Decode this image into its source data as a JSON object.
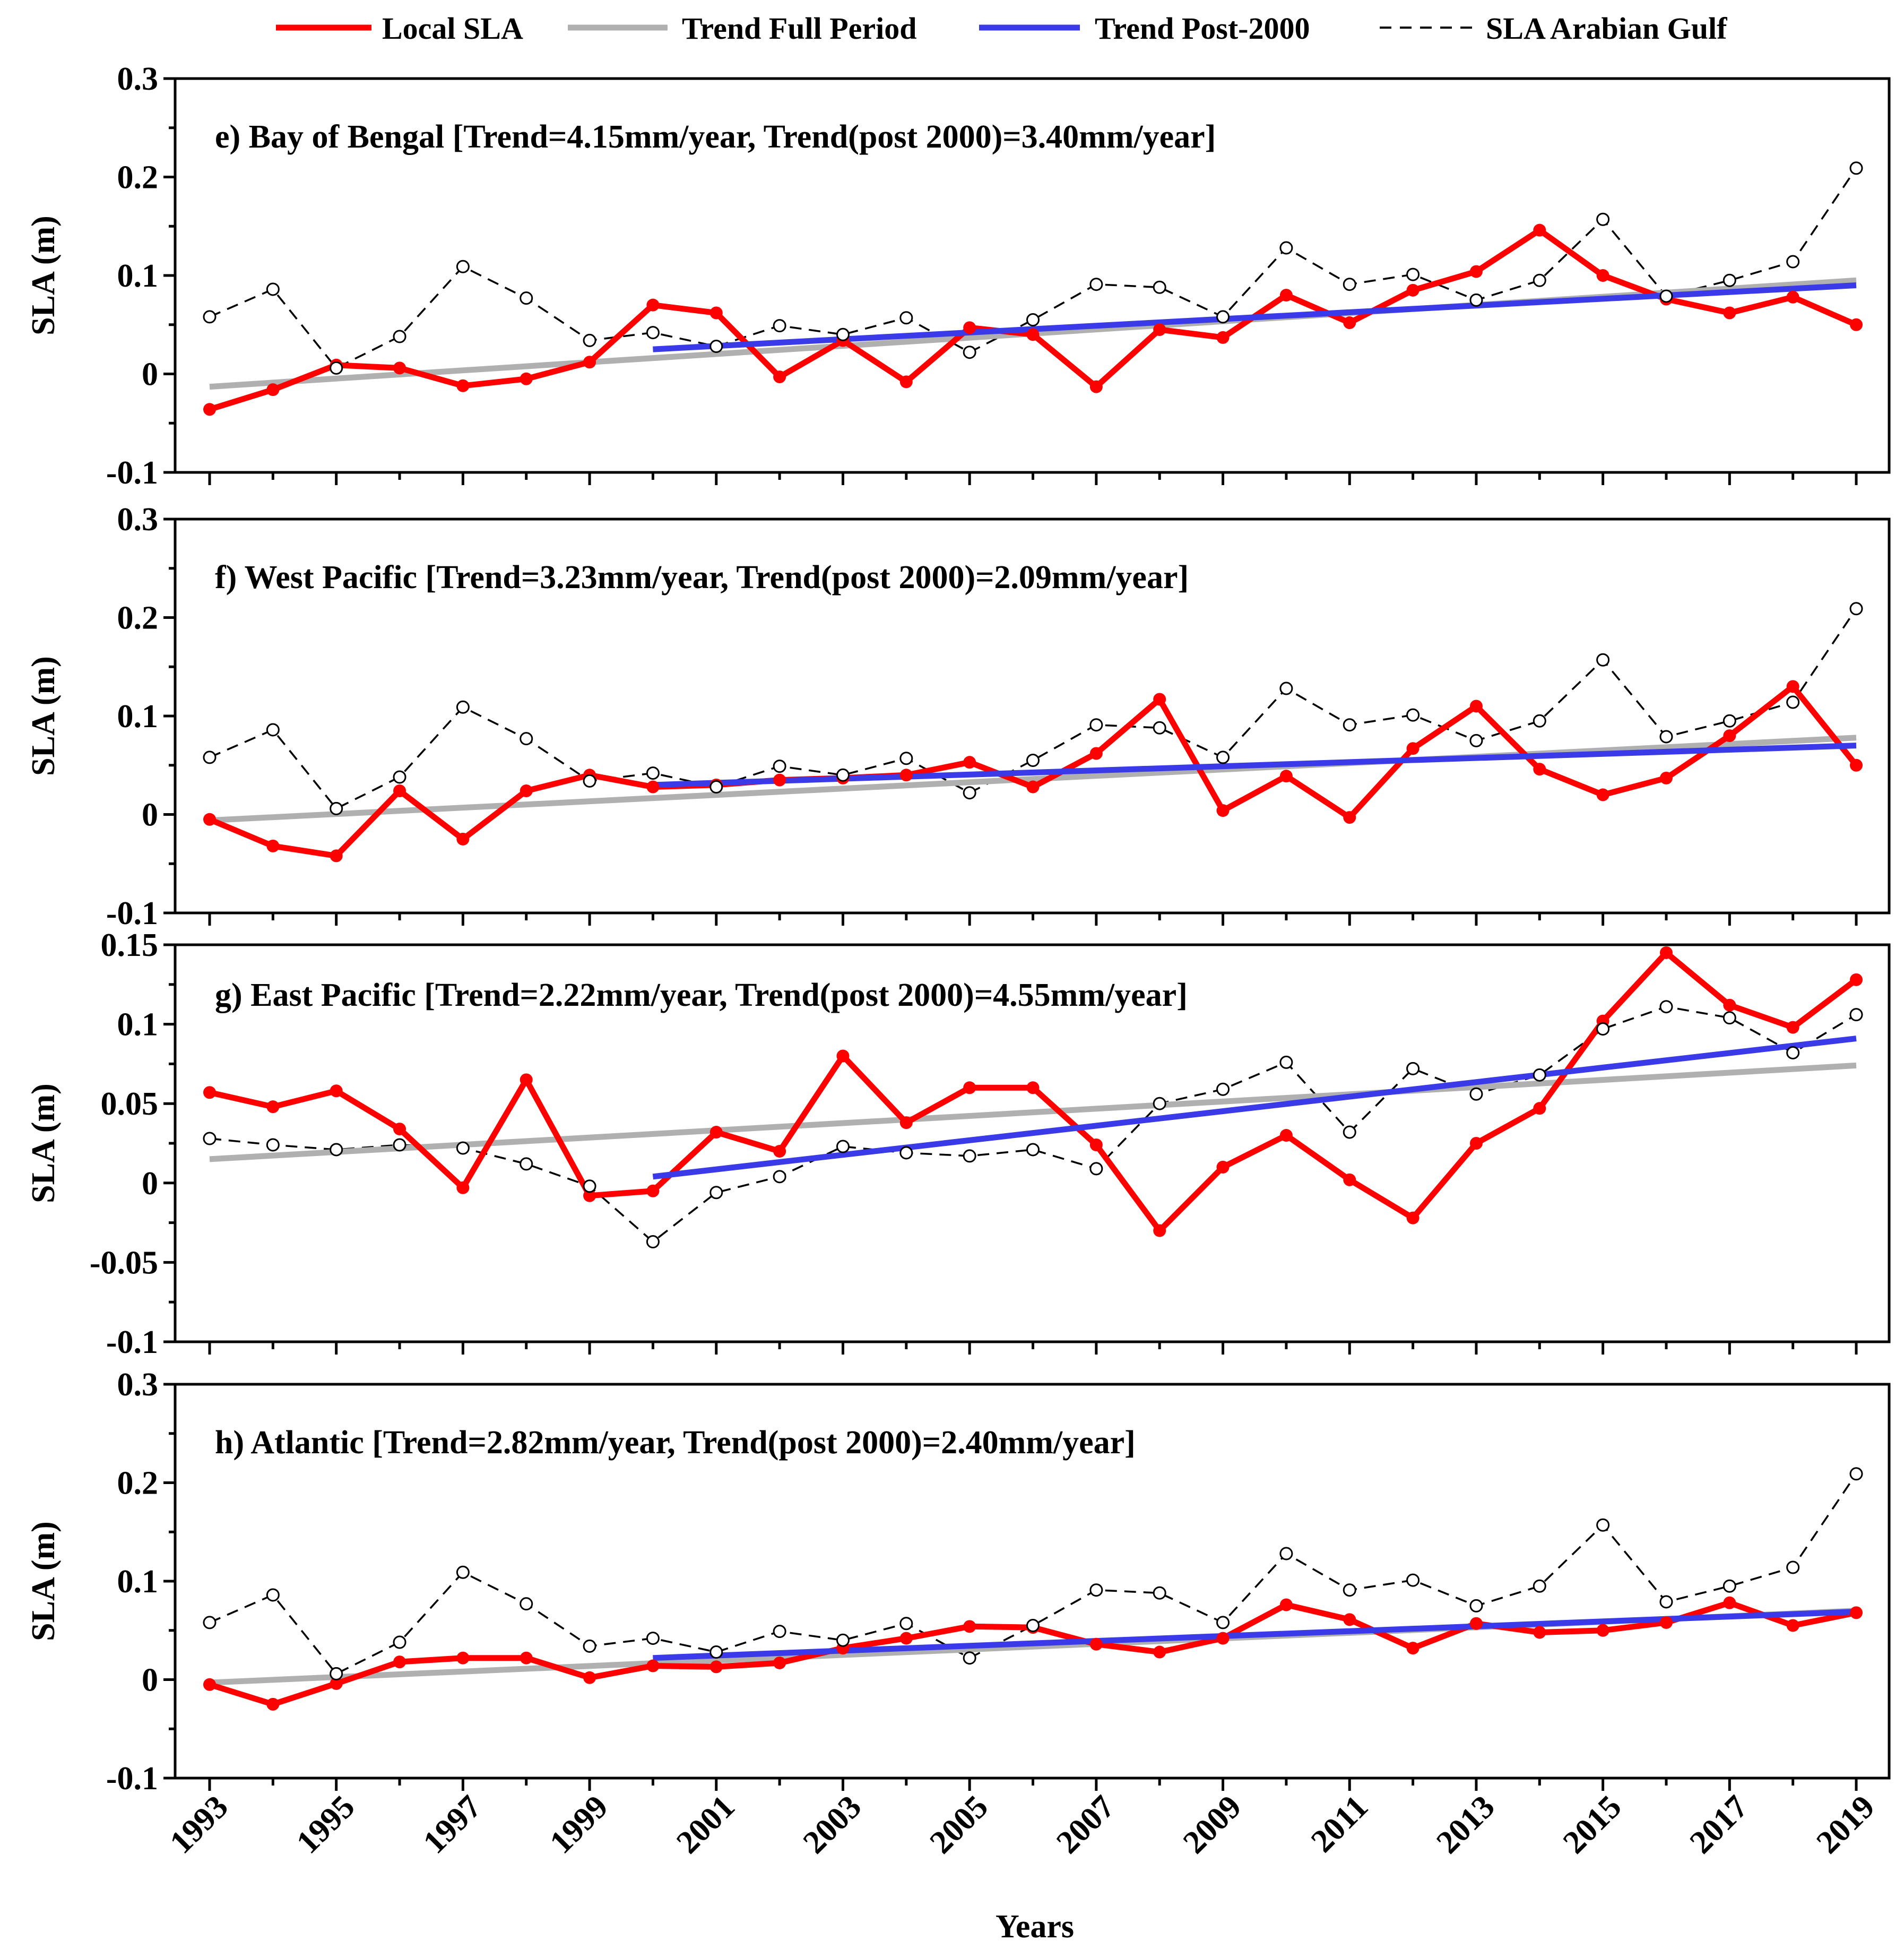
{
  "chart_data": {
    "type": "line",
    "legend": [
      {
        "name": "Local SLA",
        "color": "#ff0000",
        "style": "solid-markers"
      },
      {
        "name": "Trend Full Period",
        "color": "#b0b0b0",
        "style": "solid"
      },
      {
        "name": "Trend Post-2000",
        "color": "#3a3ae8",
        "style": "solid"
      },
      {
        "name": "SLA Arabian Gulf",
        "color": "#000000",
        "style": "dashed-open-markers"
      }
    ],
    "legend_placement": "top-center",
    "xlabel": "Years",
    "x": [
      1993,
      1994,
      1995,
      1996,
      1997,
      1998,
      1999,
      2000,
      2001,
      2002,
      2003,
      2004,
      2005,
      2006,
      2007,
      2008,
      2009,
      2010,
      2011,
      2012,
      2013,
      2014,
      2015,
      2016,
      2017,
      2018,
      2019
    ],
    "xticks": [
      "1993",
      "1995",
      "1997",
      "1999",
      "2001",
      "2003",
      "2005",
      "2007",
      "2009",
      "2011",
      "2013",
      "2015",
      "2017",
      "2019"
    ],
    "panels": [
      {
        "title": "e) Bay of Bengal [Trend=4.15mm/year, Trend(post 2000)=3.40mm/year]",
        "ylabel": "SLA (m)",
        "ylim": [
          -0.1,
          0.3
        ],
        "yticks": [
          "-0.1",
          "0",
          "0.1",
          "0.2",
          "0.3"
        ],
        "ytick_values": [
          -0.1,
          0,
          0.1,
          0.2,
          0.3
        ],
        "series": [
          {
            "name": "Local SLA",
            "values": [
              -0.036,
              -0.016,
              0.009,
              0.006,
              -0.012,
              -0.005,
              0.012,
              0.07,
              0.062,
              -0.003,
              0.034,
              -0.008,
              0.047,
              0.04,
              -0.013,
              0.045,
              0.037,
              0.08,
              0.052,
              0.085,
              0.104,
              0.146,
              0.1,
              0.076,
              0.062,
              0.078,
              0.05
            ]
          },
          {
            "name": "SLA Arabian Gulf",
            "values": [
              0.058,
              0.086,
              0.006,
              0.038,
              0.109,
              0.077,
              0.034,
              0.042,
              0.028,
              0.049,
              0.04,
              0.057,
              0.022,
              0.055,
              0.091,
              0.088,
              0.058,
              0.128,
              0.091,
              0.101,
              0.075,
              0.095,
              0.157,
              0.079,
              0.095,
              0.114,
              0.209
            ]
          }
        ],
        "trend_full": {
          "x": [
            1993,
            2019
          ],
          "y": [
            -0.013,
            0.095
          ]
        },
        "trend_post": {
          "x": [
            2000,
            2019
          ],
          "y": [
            0.025,
            0.09
          ]
        }
      },
      {
        "title": "f) West Pacific [Trend=3.23mm/year, Trend(post 2000)=2.09mm/year]",
        "ylabel": "SLA (m)",
        "ylim": [
          -0.1,
          0.3
        ],
        "yticks": [
          "-0.1",
          "0",
          "0.1",
          "0.2",
          "0.3"
        ],
        "ytick_values": [
          -0.1,
          0,
          0.1,
          0.2,
          0.3
        ],
        "series": [
          {
            "name": "Local SLA",
            "values": [
              -0.005,
              -0.032,
              -0.042,
              0.024,
              -0.025,
              0.024,
              0.04,
              0.028,
              0.03,
              0.035,
              0.037,
              0.04,
              0.053,
              0.028,
              0.062,
              0.117,
              0.004,
              0.039,
              -0.003,
              0.067,
              0.11,
              0.046,
              0.02,
              0.037,
              0.08,
              0.13,
              0.05
            ]
          },
          {
            "name": "SLA Arabian Gulf",
            "values": [
              0.058,
              0.086,
              0.006,
              0.038,
              0.109,
              0.077,
              0.034,
              0.042,
              0.028,
              0.049,
              0.04,
              0.057,
              0.022,
              0.055,
              0.091,
              0.088,
              0.058,
              0.128,
              0.091,
              0.101,
              0.075,
              0.095,
              0.157,
              0.079,
              0.095,
              0.114,
              0.209
            ]
          }
        ],
        "trend_full": {
          "x": [
            1993,
            2019
          ],
          "y": [
            -0.006,
            0.078
          ]
        },
        "trend_post": {
          "x": [
            2000,
            2019
          ],
          "y": [
            0.03,
            0.07
          ]
        }
      },
      {
        "title": "g) East Pacific [Trend=2.22mm/year, Trend(post 2000)=4.55mm/year]",
        "ylabel": "SLA (m)",
        "ylim": [
          -0.1,
          0.15
        ],
        "yticks": [
          "-0.1",
          "-0.05",
          "0",
          "0.05",
          "0.1",
          "0.15"
        ],
        "ytick_values": [
          -0.1,
          -0.05,
          0,
          0.05,
          0.1,
          0.15
        ],
        "series": [
          {
            "name": "Local SLA",
            "values": [
              0.057,
              0.048,
              0.058,
              0.034,
              -0.003,
              0.065,
              -0.008,
              -0.005,
              0.032,
              0.02,
              0.08,
              0.038,
              0.06,
              0.06,
              0.024,
              -0.03,
              0.01,
              0.03,
              0.002,
              -0.022,
              0.025,
              0.047,
              0.102,
              0.145,
              0.112,
              0.098,
              0.128
            ]
          },
          {
            "name": "SLA Arabian Gulf",
            "values": [
              0.028,
              0.024,
              0.021,
              0.024,
              0.022,
              0.012,
              -0.002,
              -0.037,
              -0.006,
              0.004,
              0.023,
              0.019,
              0.017,
              0.021,
              0.009,
              0.05,
              0.059,
              0.076,
              0.032,
              0.072,
              0.056,
              0.068,
              0.097,
              0.111,
              0.104,
              0.082,
              0.106
            ]
          }
        ],
        "trend_full": {
          "x": [
            1993,
            2019
          ],
          "y": [
            0.015,
            0.074
          ]
        },
        "trend_post": {
          "x": [
            2000,
            2019
          ],
          "y": [
            0.004,
            0.091
          ]
        }
      },
      {
        "title": "h) Atlantic [Trend=2.82mm/year, Trend(post 2000)=2.40mm/year]",
        "ylabel": "SLA (m)",
        "ylim": [
          -0.1,
          0.3
        ],
        "yticks": [
          "-0.1",
          "0",
          "0.1",
          "0.2",
          "0.3"
        ],
        "ytick_values": [
          -0.1,
          0,
          0.1,
          0.2,
          0.3
        ],
        "series": [
          {
            "name": "Local SLA",
            "values": [
              -0.005,
              -0.025,
              -0.004,
              0.018,
              0.022,
              0.022,
              0.002,
              0.014,
              0.013,
              0.017,
              0.032,
              0.042,
              0.054,
              0.053,
              0.036,
              0.028,
              0.042,
              0.076,
              0.061,
              0.032,
              0.057,
              0.048,
              0.05,
              0.058,
              0.078,
              0.055,
              0.068
            ]
          },
          {
            "name": "SLA Arabian Gulf",
            "values": [
              0.058,
              0.086,
              0.006,
              0.038,
              0.109,
              0.077,
              0.034,
              0.042,
              0.028,
              0.049,
              0.04,
              0.057,
              0.022,
              0.055,
              0.091,
              0.088,
              0.058,
              0.128,
              0.091,
              0.101,
              0.075,
              0.095,
              0.157,
              0.079,
              0.095,
              0.114,
              0.209
            ]
          }
        ],
        "trend_full": {
          "x": [
            1993,
            2019
          ],
          "y": [
            -0.003,
            0.07
          ]
        },
        "trend_post": {
          "x": [
            2000,
            2019
          ],
          "y": [
            0.022,
            0.069
          ]
        }
      }
    ]
  }
}
